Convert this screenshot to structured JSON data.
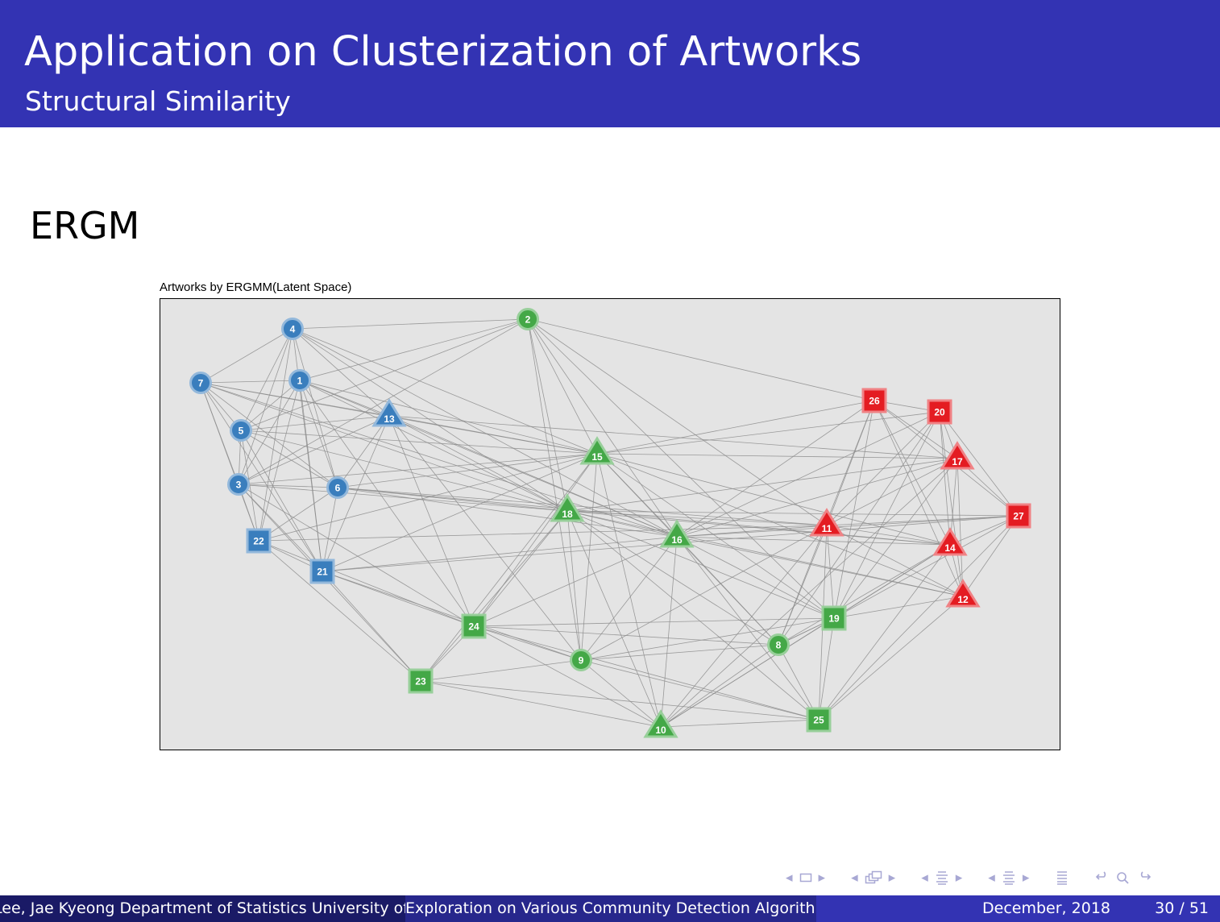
{
  "slide": {
    "title": "Application on Clusterization of Artworks",
    "subtitle": "Structural Similarity",
    "section": "ERGM"
  },
  "figure": {
    "title": "Artworks by ERGMM(Latent Space)",
    "colors": {
      "blue": "#3a7ebd",
      "green": "#44a847",
      "red": "#e41c22",
      "panel": "#e4e4e4",
      "edge": "#8c8c8c"
    },
    "nodes": [
      {
        "id": "1",
        "group": "blue",
        "shape": "circle"
      },
      {
        "id": "2",
        "group": "green",
        "shape": "circle"
      },
      {
        "id": "3",
        "group": "blue",
        "shape": "circle"
      },
      {
        "id": "4",
        "group": "blue",
        "shape": "circle"
      },
      {
        "id": "5",
        "group": "blue",
        "shape": "circle"
      },
      {
        "id": "6",
        "group": "blue",
        "shape": "circle"
      },
      {
        "id": "7",
        "group": "blue",
        "shape": "circle"
      },
      {
        "id": "8",
        "group": "green",
        "shape": "circle"
      },
      {
        "id": "9",
        "group": "green",
        "shape": "circle"
      },
      {
        "id": "10",
        "group": "green",
        "shape": "triangle"
      },
      {
        "id": "11",
        "group": "red",
        "shape": "triangle"
      },
      {
        "id": "12",
        "group": "red",
        "shape": "triangle"
      },
      {
        "id": "13",
        "group": "blue",
        "shape": "triangle"
      },
      {
        "id": "14",
        "group": "red",
        "shape": "triangle"
      },
      {
        "id": "15",
        "group": "green",
        "shape": "triangle"
      },
      {
        "id": "16",
        "group": "green",
        "shape": "triangle"
      },
      {
        "id": "17",
        "group": "red",
        "shape": "triangle"
      },
      {
        "id": "18",
        "group": "green",
        "shape": "triangle"
      },
      {
        "id": "19",
        "group": "green",
        "shape": "square"
      },
      {
        "id": "20",
        "group": "red",
        "shape": "square"
      },
      {
        "id": "21",
        "group": "blue",
        "shape": "square"
      },
      {
        "id": "22",
        "group": "blue",
        "shape": "square"
      },
      {
        "id": "23",
        "group": "green",
        "shape": "square"
      },
      {
        "id": "24",
        "group": "green",
        "shape": "square"
      },
      {
        "id": "25",
        "group": "green",
        "shape": "square"
      },
      {
        "id": "26",
        "group": "red",
        "shape": "square"
      },
      {
        "id": "27",
        "group": "red",
        "shape": "square"
      }
    ],
    "edges": [
      [
        "4",
        "2"
      ],
      [
        "4",
        "7"
      ],
      [
        "4",
        "5"
      ],
      [
        "4",
        "3"
      ],
      [
        "4",
        "13"
      ],
      [
        "4",
        "15"
      ],
      [
        "4",
        "16"
      ],
      [
        "4",
        "21"
      ],
      [
        "4",
        "22"
      ],
      [
        "4",
        "6"
      ],
      [
        "4",
        "18"
      ],
      [
        "7",
        "1"
      ],
      [
        "7",
        "5"
      ],
      [
        "7",
        "3"
      ],
      [
        "7",
        "13"
      ],
      [
        "7",
        "15"
      ],
      [
        "7",
        "18"
      ],
      [
        "7",
        "21"
      ],
      [
        "7",
        "22"
      ],
      [
        "7",
        "16"
      ],
      [
        "7",
        "6"
      ],
      [
        "1",
        "5"
      ],
      [
        "1",
        "3"
      ],
      [
        "1",
        "13"
      ],
      [
        "1",
        "15"
      ],
      [
        "1",
        "6"
      ],
      [
        "1",
        "21"
      ],
      [
        "1",
        "22"
      ],
      [
        "1",
        "2"
      ],
      [
        "1",
        "18"
      ],
      [
        "1",
        "16"
      ],
      [
        "1",
        "24"
      ],
      [
        "5",
        "3"
      ],
      [
        "5",
        "13"
      ],
      [
        "5",
        "22"
      ],
      [
        "5",
        "21"
      ],
      [
        "5",
        "6"
      ],
      [
        "5",
        "18"
      ],
      [
        "5",
        "15"
      ],
      [
        "5",
        "2"
      ],
      [
        "3",
        "22"
      ],
      [
        "3",
        "21"
      ],
      [
        "3",
        "6"
      ],
      [
        "3",
        "13"
      ],
      [
        "3",
        "18"
      ],
      [
        "3",
        "15"
      ],
      [
        "3",
        "24"
      ],
      [
        "3",
        "23"
      ],
      [
        "3",
        "2"
      ],
      [
        "13",
        "15"
      ],
      [
        "13",
        "18"
      ],
      [
        "13",
        "16"
      ],
      [
        "13",
        "21"
      ],
      [
        "13",
        "24"
      ],
      [
        "13",
        "9"
      ],
      [
        "13",
        "6"
      ],
      [
        "13",
        "17"
      ],
      [
        "6",
        "18"
      ],
      [
        "6",
        "16"
      ],
      [
        "6",
        "21"
      ],
      [
        "6",
        "22"
      ],
      [
        "6",
        "15"
      ],
      [
        "6",
        "11"
      ],
      [
        "6",
        "14"
      ],
      [
        "22",
        "21"
      ],
      [
        "22",
        "11"
      ],
      [
        "22",
        "23"
      ],
      [
        "22",
        "24"
      ],
      [
        "22",
        "15"
      ],
      [
        "21",
        "24"
      ],
      [
        "21",
        "23"
      ],
      [
        "21",
        "15"
      ],
      [
        "21",
        "16"
      ],
      [
        "21",
        "9"
      ],
      [
        "21",
        "27"
      ],
      [
        "2",
        "26"
      ],
      [
        "2",
        "15"
      ],
      [
        "2",
        "16"
      ],
      [
        "2",
        "18"
      ],
      [
        "2",
        "9"
      ],
      [
        "2",
        "11"
      ],
      [
        "2",
        "19"
      ],
      [
        "15",
        "26"
      ],
      [
        "15",
        "20"
      ],
      [
        "15",
        "17"
      ],
      [
        "15",
        "16"
      ],
      [
        "15",
        "24"
      ],
      [
        "15",
        "9"
      ],
      [
        "15",
        "10"
      ],
      [
        "15",
        "19"
      ],
      [
        "15",
        "14"
      ],
      [
        "15",
        "12"
      ],
      [
        "15",
        "8"
      ],
      [
        "18",
        "16"
      ],
      [
        "18",
        "11"
      ],
      [
        "18",
        "24"
      ],
      [
        "18",
        "9"
      ],
      [
        "18",
        "10"
      ],
      [
        "18",
        "25"
      ],
      [
        "18",
        "19"
      ],
      [
        "18",
        "27"
      ],
      [
        "18",
        "8"
      ],
      [
        "18",
        "23"
      ],
      [
        "18",
        "14"
      ],
      [
        "18",
        "12"
      ],
      [
        "18",
        "17"
      ],
      [
        "16",
        "11"
      ],
      [
        "16",
        "26"
      ],
      [
        "16",
        "20"
      ],
      [
        "16",
        "17"
      ],
      [
        "16",
        "27"
      ],
      [
        "16",
        "14"
      ],
      [
        "16",
        "12"
      ],
      [
        "16",
        "19"
      ],
      [
        "16",
        "8"
      ],
      [
        "16",
        "9"
      ],
      [
        "16",
        "10"
      ],
      [
        "16",
        "25"
      ],
      [
        "16",
        "24"
      ],
      [
        "11",
        "26"
      ],
      [
        "11",
        "20"
      ],
      [
        "11",
        "17"
      ],
      [
        "11",
        "27"
      ],
      [
        "11",
        "14"
      ],
      [
        "11",
        "12"
      ],
      [
        "11",
        "19"
      ],
      [
        "11",
        "8"
      ],
      [
        "11",
        "25"
      ],
      [
        "11",
        "9"
      ],
      [
        "11",
        "10"
      ],
      [
        "26",
        "20"
      ],
      [
        "26",
        "17"
      ],
      [
        "26",
        "14"
      ],
      [
        "26",
        "12"
      ],
      [
        "26",
        "19"
      ],
      [
        "26",
        "8"
      ],
      [
        "26",
        "27"
      ],
      [
        "20",
        "17"
      ],
      [
        "20",
        "27"
      ],
      [
        "20",
        "14"
      ],
      [
        "20",
        "12"
      ],
      [
        "20",
        "19"
      ],
      [
        "20",
        "8"
      ],
      [
        "17",
        "27"
      ],
      [
        "17",
        "14"
      ],
      [
        "17",
        "12"
      ],
      [
        "17",
        "19"
      ],
      [
        "27",
        "14"
      ],
      [
        "27",
        "12"
      ],
      [
        "27",
        "19"
      ],
      [
        "27",
        "25"
      ],
      [
        "14",
        "12"
      ],
      [
        "14",
        "19"
      ],
      [
        "14",
        "8"
      ],
      [
        "14",
        "25"
      ],
      [
        "14",
        "10"
      ],
      [
        "12",
        "19"
      ],
      [
        "12",
        "25"
      ],
      [
        "19",
        "24"
      ],
      [
        "19",
        "9"
      ],
      [
        "19",
        "8"
      ],
      [
        "19",
        "25"
      ],
      [
        "19",
        "10"
      ],
      [
        "24",
        "9"
      ],
      [
        "24",
        "23"
      ],
      [
        "24",
        "10"
      ],
      [
        "24",
        "8"
      ],
      [
        "24",
        "25"
      ],
      [
        "9",
        "23"
      ],
      [
        "9",
        "10"
      ],
      [
        "9",
        "8"
      ],
      [
        "9",
        "25"
      ],
      [
        "8",
        "10"
      ],
      [
        "8",
        "25"
      ],
      [
        "8",
        "19"
      ],
      [
        "23",
        "10"
      ],
      [
        "23",
        "25"
      ],
      [
        "23",
        "15"
      ],
      [
        "10",
        "25"
      ],
      [
        "10",
        "17"
      ]
    ]
  },
  "footer": {
    "author": "Lee, Jae Kyeong Department of Statistics University of",
    "talk": "Exploration on Various Community Detection Algorithms",
    "date": "December, 2018",
    "page": "30 / 51"
  }
}
